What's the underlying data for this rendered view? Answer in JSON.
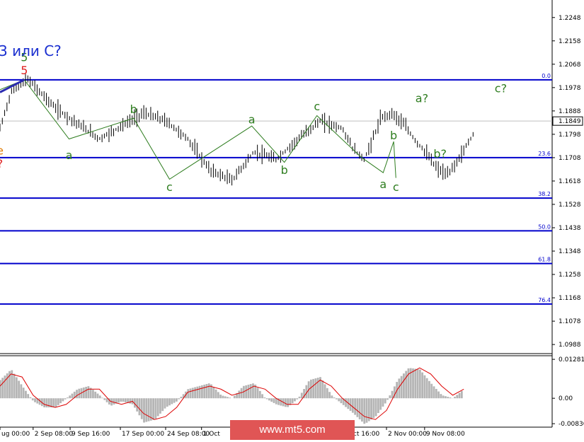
{
  "chart_data": [
    {
      "type": "line",
      "title": "3 или C?",
      "price_axis": {
        "ticks": [
          "1.2248",
          "1.2158",
          "1.2068",
          "1.1978",
          "1.1888",
          "1.1798",
          "1.1708",
          "1.1618",
          "1.1528",
          "1.1438",
          "1.1348",
          "1.1258",
          "1.1168",
          "1.1078",
          "1.0988"
        ],
        "range": [
          1.0953,
          1.231
        ],
        "current_price": "1.1849",
        "current_value": 1.1849
      },
      "time_axis": {
        "labels": [
          "ug 00:00",
          "2 Sep 08:00",
          "9 Sep 16:00",
          "17 Sep 00:00",
          "24 Sep 08:00",
          "1 Oct",
          "Oct 16:00",
          "2 Nov 00:00",
          "9 Nov 08:00"
        ],
        "range": [
          0,
          100
        ]
      },
      "price_series": {
        "x": [
          0,
          2,
          5,
          10,
          14,
          18,
          22,
          26,
          30,
          34,
          38,
          42,
          46,
          50,
          54,
          58,
          62,
          64,
          66,
          69,
          71,
          73,
          75,
          77,
          79,
          81,
          83,
          86
        ],
        "y": [
          1.182,
          1.196,
          1.201,
          1.19,
          1.184,
          1.178,
          1.183,
          1.188,
          1.185,
          1.178,
          1.166,
          1.162,
          1.173,
          1.17,
          1.178,
          1.185,
          1.182,
          1.174,
          1.17,
          1.186,
          1.188,
          1.184,
          1.178,
          1.173,
          1.167,
          1.164,
          1.17,
          1.181
        ]
      },
      "fibonacci_levels": [
        {
          "label": "0.0",
          "price": 1.2008
        },
        {
          "label": "23.6",
          "price": 1.1708
        },
        {
          "label": "38.2",
          "price": 1.1552
        },
        {
          "label": "50.0",
          "price": 1.1426
        },
        {
          "label": "61.8",
          "price": 1.13
        },
        {
          "label": "76.4",
          "price": 1.1144
        }
      ],
      "wave_labels": [
        {
          "text": "5",
          "color": "#2e7d1f",
          "x": 4.4,
          "y": 1.208
        },
        {
          "text": "5",
          "color": "#e02020",
          "x": 4.4,
          "y": 1.203
        },
        {
          "text": "a",
          "color": "#2e7d1f",
          "x": 12.5,
          "y": 1.1703
        },
        {
          "text": "b",
          "color": "#2e7d1f",
          "x": 24.2,
          "y": 1.188
        },
        {
          "text": "c",
          "color": "#2e7d1f",
          "x": 30.7,
          "y": 1.158
        },
        {
          "text": "a",
          "color": "#2e7d1f",
          "x": 45.6,
          "y": 1.184
        },
        {
          "text": "b",
          "color": "#2e7d1f",
          "x": 51.5,
          "y": 1.1645
        },
        {
          "text": "c",
          "color": "#2e7d1f",
          "x": 57.4,
          "y": 1.189
        },
        {
          "text": "b",
          "color": "#2e7d1f",
          "x": 71.3,
          "y": 1.1778
        },
        {
          "text": "a",
          "color": "#2e7d1f",
          "x": 69.4,
          "y": 1.159
        },
        {
          "text": "c",
          "color": "#2e7d1f",
          "x": 71.7,
          "y": 1.158
        },
        {
          "text": "a?",
          "color": "#2e7d1f",
          "x": 76.4,
          "y": 1.1922
        },
        {
          "text": "b?",
          "color": "#2e7d1f",
          "x": 79.7,
          "y": 1.1708
        },
        {
          "text": "c?",
          "color": "#2e7d1f",
          "x": 90.7,
          "y": 1.196
        },
        {
          "text": "e",
          "color": "#e07a00",
          "x": 0.0,
          "y": 1.172
        },
        {
          "text": "?",
          "color": "#e02020",
          "x": 0.0,
          "y": 1.167
        }
      ],
      "wave_path": {
        "x": [
          0,
          4.4,
          12.5,
          24.2,
          30.7,
          45.6,
          51.5,
          57.4,
          65.4,
          69.4,
          71.3,
          71.7
        ],
        "y": [
          1.197,
          1.2008,
          1.178,
          1.186,
          1.1625,
          1.183,
          1.169,
          1.187,
          1.171,
          1.165,
          1.177,
          1.163
        ]
      },
      "colors": {
        "fibo": "#0000cc",
        "wave_line": "#2e7d1f",
        "bars": "#000000",
        "current_line": "#bfbfbf"
      }
    },
    {
      "type": "area",
      "indicator": "oscillator",
      "y_axis": {
        "ticks": [
          "0.01281",
          "0.00",
          "-0.00836"
        ],
        "range": [
          -0.0095,
          0.014
        ]
      },
      "signal_series": {
        "x": [
          0,
          2,
          4,
          6,
          8,
          10,
          12,
          14,
          16,
          18,
          20,
          22,
          24,
          26,
          28,
          30,
          32,
          34,
          36,
          38,
          40,
          42,
          44,
          46,
          48,
          50,
          52,
          54,
          56,
          58,
          60,
          62,
          64,
          66,
          68,
          70,
          72,
          74,
          76,
          78,
          80,
          82,
          84
        ],
        "y": [
          0.004,
          0.008,
          0.007,
          0.001,
          -0.002,
          -0.003,
          -0.002,
          0.001,
          0.003,
          0.003,
          -0.001,
          -0.002,
          -0.001,
          -0.005,
          -0.007,
          -0.006,
          -0.003,
          0.002,
          0.003,
          0.004,
          0.003,
          0.001,
          0.002,
          0.004,
          0.003,
          0.0,
          -0.002,
          -0.002,
          0.003,
          0.006,
          0.004,
          0.0,
          -0.003,
          -0.006,
          -0.007,
          -0.004,
          0.003,
          0.008,
          0.01,
          0.008,
          0.004,
          0.001,
          0.003
        ]
      },
      "histogram": {
        "x": [
          0,
          2,
          4,
          6,
          8,
          10,
          12,
          14,
          16,
          18,
          20,
          22,
          24,
          26,
          28,
          30,
          32,
          34,
          36,
          38,
          40,
          42,
          44,
          46,
          48,
          50,
          52,
          54,
          56,
          58,
          60,
          62,
          64,
          66,
          68,
          70,
          72,
          74,
          76,
          78,
          80,
          82,
          84
        ],
        "y": [
          0.006,
          0.0095,
          0.004,
          -0.001,
          -0.003,
          -0.003,
          0.0,
          0.003,
          0.004,
          0.001,
          -0.0025,
          -0.001,
          -0.002,
          -0.008,
          -0.007,
          -0.003,
          -0.001,
          0.003,
          0.004,
          0.005,
          0.001,
          0.0,
          0.004,
          0.005,
          0.0,
          -0.002,
          -0.003,
          0.0,
          0.006,
          0.007,
          0.001,
          -0.002,
          -0.005,
          -0.0085,
          -0.006,
          -0.001,
          0.006,
          0.01,
          0.0095,
          0.005,
          0.001,
          0.0,
          0.003
        ]
      },
      "colors": {
        "signal": "#dd0000",
        "histogram": "#b5b5b5"
      }
    }
  ],
  "watermark": "www.mt5.com"
}
